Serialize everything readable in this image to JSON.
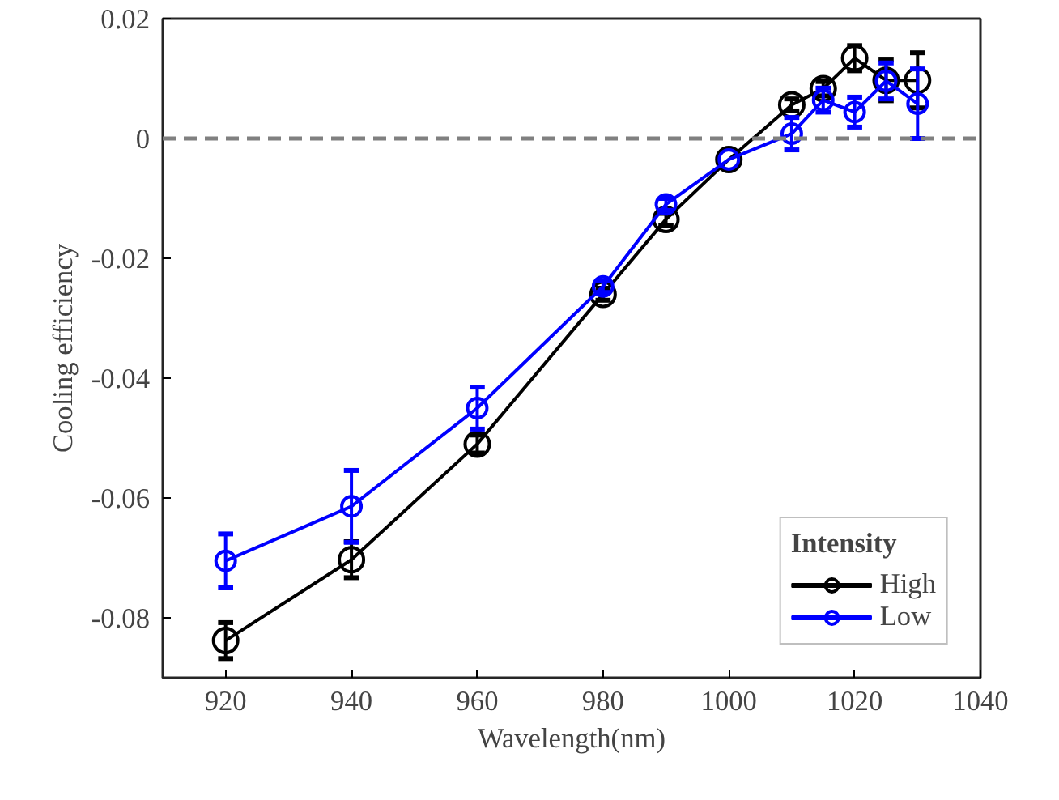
{
  "chart_data": {
    "type": "line",
    "xlabel": "Wavelength(nm)",
    "ylabel": "Cooling efficiency",
    "legend_title": "Intensity",
    "x": [
      920,
      940,
      960,
      980,
      990,
      1000,
      1010,
      1015,
      1020,
      1025,
      1030
    ],
    "series": [
      {
        "name": "High",
        "color": "#000000",
        "values": [
          -0.0838,
          -0.0703,
          -0.051,
          -0.026,
          -0.0135,
          -0.0035,
          0.0056,
          0.0083,
          0.0134,
          0.0097,
          0.0097
        ],
        "errors": [
          0.003,
          0.003,
          0.0015,
          0.001,
          0.001,
          null,
          0.001,
          0.0012,
          0.0021,
          0.0034,
          0.0046
        ]
      },
      {
        "name": "Low",
        "color": "#0000ff",
        "values": [
          -0.0705,
          -0.0614,
          -0.045,
          -0.0247,
          -0.011,
          -0.0035,
          0.0008,
          0.0064,
          0.0044,
          0.0096,
          0.0058
        ],
        "errors": [
          0.0045,
          0.006,
          0.0035,
          0.001,
          0.001,
          null,
          0.0027,
          0.002,
          0.0025,
          0.003,
          0.0058
        ]
      }
    ],
    "xlim": [
      910,
      1040
    ],
    "xticks": [
      920,
      940,
      960,
      980,
      1000,
      1020,
      1040
    ],
    "ylim": [
      -0.09,
      0.02
    ],
    "yticks": [
      {
        "value": -0.08,
        "label": "-0.08"
      },
      {
        "value": -0.06,
        "label": "-0.06"
      },
      {
        "value": -0.04,
        "label": "-0.04"
      },
      {
        "value": -0.02,
        "label": "-0.02"
      },
      {
        "value": 0,
        "label": "0"
      },
      {
        "value": 0.02,
        "label": "0.02"
      }
    ],
    "ref_lines": [
      {
        "axis": "y",
        "value": 0,
        "label": null,
        "color": "#808080",
        "line_style": "dashed"
      }
    ],
    "marker": "circle",
    "line_style": "solid",
    "legend": "bottom right",
    "grid": false
  }
}
